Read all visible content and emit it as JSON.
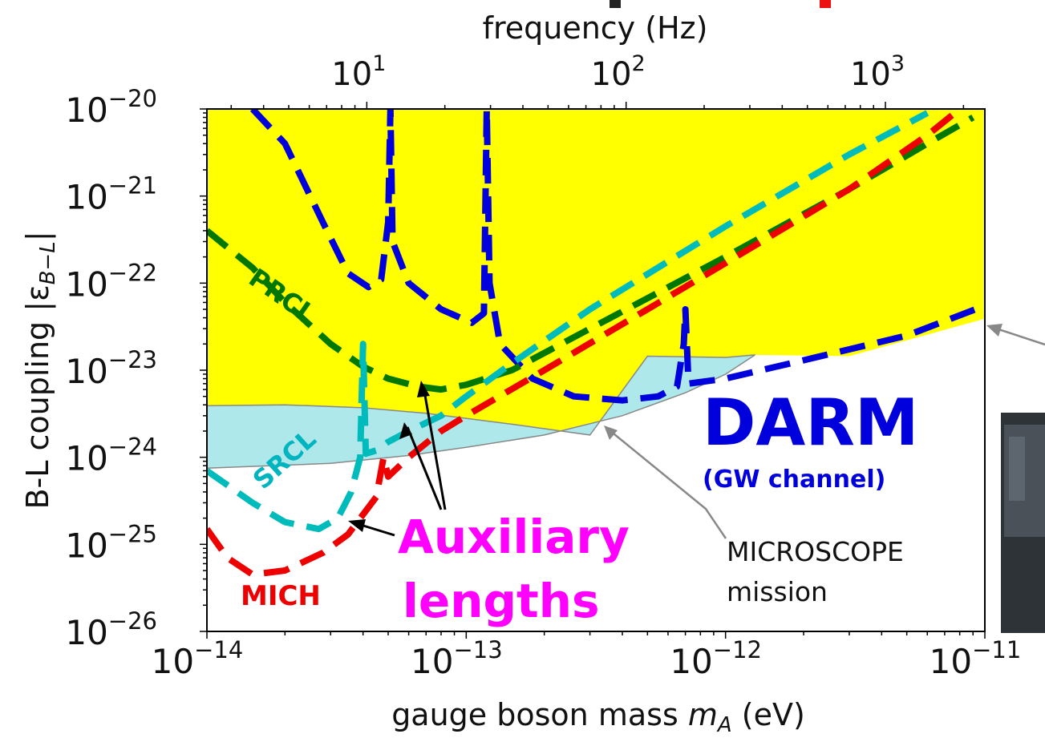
{
  "chart_data": {
    "type": "line",
    "title": "",
    "top_axis": {
      "label": "frequency (Hz)",
      "scale": "log",
      "ticks": [
        {
          "value": 10,
          "label": "10",
          "exp": "1"
        },
        {
          "value": 100,
          "label": "10",
          "exp": "2"
        },
        {
          "value": 1000,
          "label": "10",
          "exp": "3"
        }
      ]
    },
    "x_axis": {
      "label": "gauge boson mass",
      "symbol": "m",
      "symbol_sub": "A",
      "unit": "(eV)",
      "scale": "log",
      "range": [
        1e-14,
        1e-11
      ],
      "ticks": [
        {
          "value": 1e-14,
          "label": "10",
          "exp": "−14"
        },
        {
          "value": 1e-13,
          "label": "10",
          "exp": "−13"
        },
        {
          "value": 1e-12,
          "label": "10",
          "exp": "−12"
        },
        {
          "value": 1e-11,
          "label": "10",
          "exp": "−11"
        }
      ]
    },
    "y_axis": {
      "label": "B-L coupling |ε",
      "label_sub": "B−L",
      "label_end": "|",
      "scale": "log",
      "range": [
        1e-26,
        1e-20
      ],
      "ticks": [
        {
          "value": 1e-20,
          "label": "10",
          "exp": "−20"
        },
        {
          "value": 1e-21,
          "label": "10",
          "exp": "−21"
        },
        {
          "value": 1e-22,
          "label": "10",
          "exp": "−22"
        },
        {
          "value": 1e-23,
          "label": "10",
          "exp": "−23"
        },
        {
          "value": 1e-24,
          "label": "10",
          "exp": "−24"
        },
        {
          "value": 1e-25,
          "label": "10",
          "exp": "−25"
        },
        {
          "value": 1e-26,
          "label": "10",
          "exp": "−26"
        }
      ]
    },
    "regions": [
      {
        "name": "excluded-yellow",
        "color": "#ffff00",
        "upper": [
          [
            1e-14,
            1e-20
          ],
          [
            1e-11,
            1e-20
          ]
        ],
        "lower": [
          [
            1e-14,
            3.9e-24
          ],
          [
            2e-14,
            4e-24
          ],
          [
            4e-14,
            3.7e-24
          ],
          [
            7e-14,
            3.2e-24
          ],
          [
            1.5e-13,
            2.4e-24
          ],
          [
            3e-13,
            1.8e-24
          ],
          [
            5e-13,
            1.45e-23
          ],
          [
            1e-12,
            1.4e-23
          ],
          [
            1.3e-12,
            1.5e-23
          ],
          [
            3e-12,
            1.45e-23
          ],
          [
            1e-11,
            3.9e-23
          ]
        ]
      },
      {
        "name": "microscope-cyan",
        "color": "#aee8ea",
        "upper": [
          [
            1e-14,
            3.9e-24
          ],
          [
            2e-14,
            4e-24
          ],
          [
            4e-14,
            3.7e-24
          ],
          [
            7e-14,
            3.2e-24
          ],
          [
            1.5e-13,
            2.4e-24
          ],
          [
            3e-13,
            1.8e-24
          ],
          [
            5e-13,
            1.45e-23
          ],
          [
            1e-12,
            1.4e-23
          ],
          [
            1.3e-12,
            1.5e-23
          ]
        ],
        "lower": [
          [
            1e-14,
            7.5e-25
          ],
          [
            3e-14,
            8.5e-25
          ],
          [
            6e-14,
            1.05e-24
          ],
          [
            1e-13,
            1.3e-24
          ],
          [
            2e-13,
            1.8e-24
          ],
          [
            4e-13,
            3e-24
          ],
          [
            7e-13,
            5.5e-24
          ],
          [
            1e-12,
            9e-24
          ],
          [
            1.3e-12,
            1.5e-23
          ]
        ]
      }
    ],
    "series": [
      {
        "name": "DARM",
        "color": "#0000dd",
        "style": "dashed",
        "points": [
          [
            1.5e-14,
            1e-20
          ],
          [
            2e-14,
            4e-21
          ],
          [
            2.8e-14,
            5e-22
          ],
          [
            3.5e-14,
            1.3e-22
          ],
          [
            4.2e-14,
            9e-23
          ],
          [
            4.7e-14,
            1.1e-22
          ],
          [
            5e-14,
            5e-22
          ],
          [
            5.1e-14,
            1e-20
          ],
          [
            5.2e-14,
            3e-22
          ],
          [
            6e-14,
            1e-22
          ],
          [
            8e-14,
            5e-23
          ],
          [
            1.05e-13,
            3.5e-23
          ],
          [
            1.17e-13,
            4.5e-23
          ],
          [
            1.2e-13,
            1e-20
          ],
          [
            1.23e-13,
            1e-22
          ],
          [
            1.35e-13,
            2e-23
          ],
          [
            1.8e-13,
            8e-24
          ],
          [
            2.6e-13,
            5e-24
          ],
          [
            4e-13,
            4.5e-24
          ],
          [
            5.5e-13,
            5e-24
          ],
          [
            6.5e-13,
            6.5e-24
          ],
          [
            6.9e-13,
            2e-23
          ],
          [
            7e-13,
            5e-23
          ],
          [
            7.2e-13,
            7e-24
          ],
          [
            1e-12,
            8e-24
          ],
          [
            2e-12,
            1.3e-23
          ],
          [
            5e-12,
            2.5e-23
          ],
          [
            1e-11,
            5.5e-23
          ]
        ]
      },
      {
        "name": "PRCL",
        "color": "#007700",
        "style": "dashed",
        "points": [
          [
            1e-14,
            4e-22
          ],
          [
            1.5e-14,
            1.5e-22
          ],
          [
            2e-14,
            6e-23
          ],
          [
            3e-14,
            2e-23
          ],
          [
            4e-14,
            1.1e-23
          ],
          [
            5e-14,
            8e-24
          ],
          [
            6.5e-14,
            6.5e-24
          ],
          [
            8e-14,
            6e-24
          ],
          [
            1e-13,
            6.8e-24
          ],
          [
            1.5e-13,
            1e-23
          ],
          [
            3e-13,
            3e-23
          ],
          [
            1e-12,
            2e-22
          ],
          [
            3e-12,
            1.2e-21
          ],
          [
            6e-12,
            4e-21
          ],
          [
            9e-12,
            8e-21
          ]
        ]
      },
      {
        "name": "SRCL",
        "color": "#00bbbb",
        "style": "dashed",
        "points": [
          [
            1e-14,
            7e-25
          ],
          [
            1.5e-14,
            3e-25
          ],
          [
            2e-14,
            1.8e-25
          ],
          [
            2.7e-14,
            1.5e-25
          ],
          [
            3.2e-14,
            2e-25
          ],
          [
            3.6e-14,
            4e-25
          ],
          [
            3.9e-14,
            1e-24
          ],
          [
            4e-14,
            2e-23
          ],
          [
            4.1e-14,
            1.1e-24
          ],
          [
            4.5e-14,
            1.2e-24
          ],
          [
            5e-14,
            1.5e-24
          ],
          [
            6e-14,
            2e-24
          ],
          [
            8e-14,
            3e-24
          ],
          [
            1e-13,
            5e-24
          ],
          [
            1.5e-13,
            1.2e-23
          ],
          [
            3e-13,
            5e-23
          ],
          [
            1e-12,
            4.5e-22
          ],
          [
            3e-12,
            3e-21
          ],
          [
            6e-12,
            9e-21
          ]
        ]
      },
      {
        "name": "MICH",
        "color": "#ee0000",
        "style": "dashed",
        "points": [
          [
            1e-14,
            1.5e-25
          ],
          [
            1.2e-14,
            7e-26
          ],
          [
            1.5e-14,
            4.5e-26
          ],
          [
            2e-14,
            5e-26
          ],
          [
            2.8e-14,
            8e-26
          ],
          [
            3.5e-14,
            1.3e-25
          ],
          [
            4e-14,
            2.2e-25
          ],
          [
            4.5e-14,
            3.5e-25
          ],
          [
            4.8e-14,
            1e-24
          ],
          [
            5e-14,
            6e-25
          ],
          [
            6e-14,
            1e-24
          ],
          [
            8e-14,
            2e-24
          ],
          [
            1e-13,
            3e-24
          ],
          [
            2e-13,
            1e-23
          ],
          [
            5e-13,
            5e-23
          ],
          [
            1e-12,
            1.7e-22
          ],
          [
            3e-12,
            1.2e-21
          ],
          [
            6e-12,
            5e-21
          ],
          [
            8e-12,
            1e-20
          ]
        ]
      }
    ],
    "annotations": {
      "prcl": "PRCL",
      "srcl": "SRCL",
      "mich": "MICH",
      "darm": "DARM",
      "darm_sub": "(GW channel)",
      "auxiliary_1": "Auxiliary",
      "auxiliary_2": "lengths",
      "microscope_1": "MICROSCOPE",
      "microscope_2": "mission"
    },
    "grid": false
  }
}
